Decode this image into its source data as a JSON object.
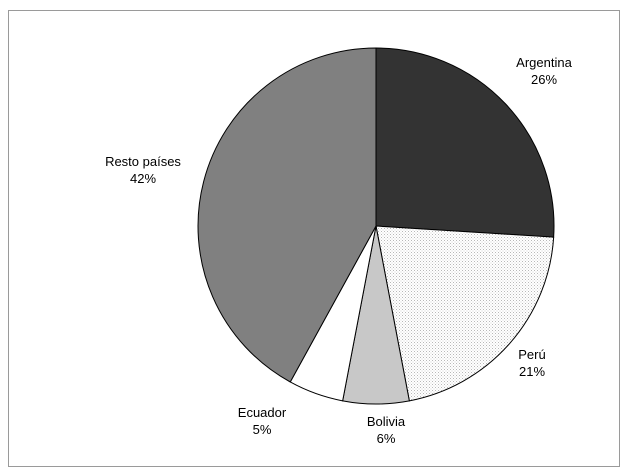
{
  "chart_data": {
    "type": "pie",
    "start_angle": "12 o'clock",
    "direction": "clockwise",
    "legend": "none",
    "slices": [
      {
        "label": "Argentina",
        "value": 26,
        "value_label": "26%",
        "color": "#333333",
        "fill_style": "solid"
      },
      {
        "label": "Perú",
        "value": 21,
        "value_label": "21%",
        "color": "#ffffff",
        "fill_style": "dotted"
      },
      {
        "label": "Bolivia",
        "value": 6,
        "value_label": "6%",
        "color": "#c8c8c8",
        "fill_style": "solid"
      },
      {
        "label": "Ecuador",
        "value": 5,
        "value_label": "5%",
        "color": "#ffffff",
        "fill_style": "solid"
      },
      {
        "label": "Resto países",
        "value": 42,
        "value_label": "42%",
        "color": "#808080",
        "fill_style": "solid"
      }
    ]
  }
}
